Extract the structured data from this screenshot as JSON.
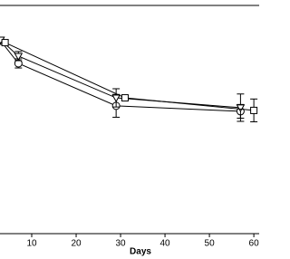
{
  "chart_data": {
    "type": "line",
    "x_label": "Days",
    "xlim": [
      3,
      61
    ],
    "ylim": [
      0,
      100
    ],
    "xticks": [
      10,
      20,
      30,
      40,
      50,
      60
    ],
    "series": [
      {
        "marker": "circle",
        "color": "#000000",
        "x": [
          3,
          7,
          29,
          57
        ],
        "values": [
          84.5,
          74.6,
          56.0,
          53.6
        ],
        "errors": [
          1.5,
          2.0,
          5.0,
          3.0
        ]
      },
      {
        "marker": "triangle",
        "color": "#000000",
        "x": [
          3,
          7,
          29,
          57
        ],
        "values": [
          84.9,
          77.8,
          59.5,
          55.2
        ],
        "errors": [
          1.0,
          2.0,
          4.0,
          6.0
        ]
      },
      {
        "marker": "square",
        "color": "#000000",
        "x": [
          4,
          31,
          60
        ],
        "values": [
          83.7,
          59.5,
          54.0
        ],
        "errors": [
          1.0,
          1.0,
          5.0
        ]
      }
    ]
  }
}
